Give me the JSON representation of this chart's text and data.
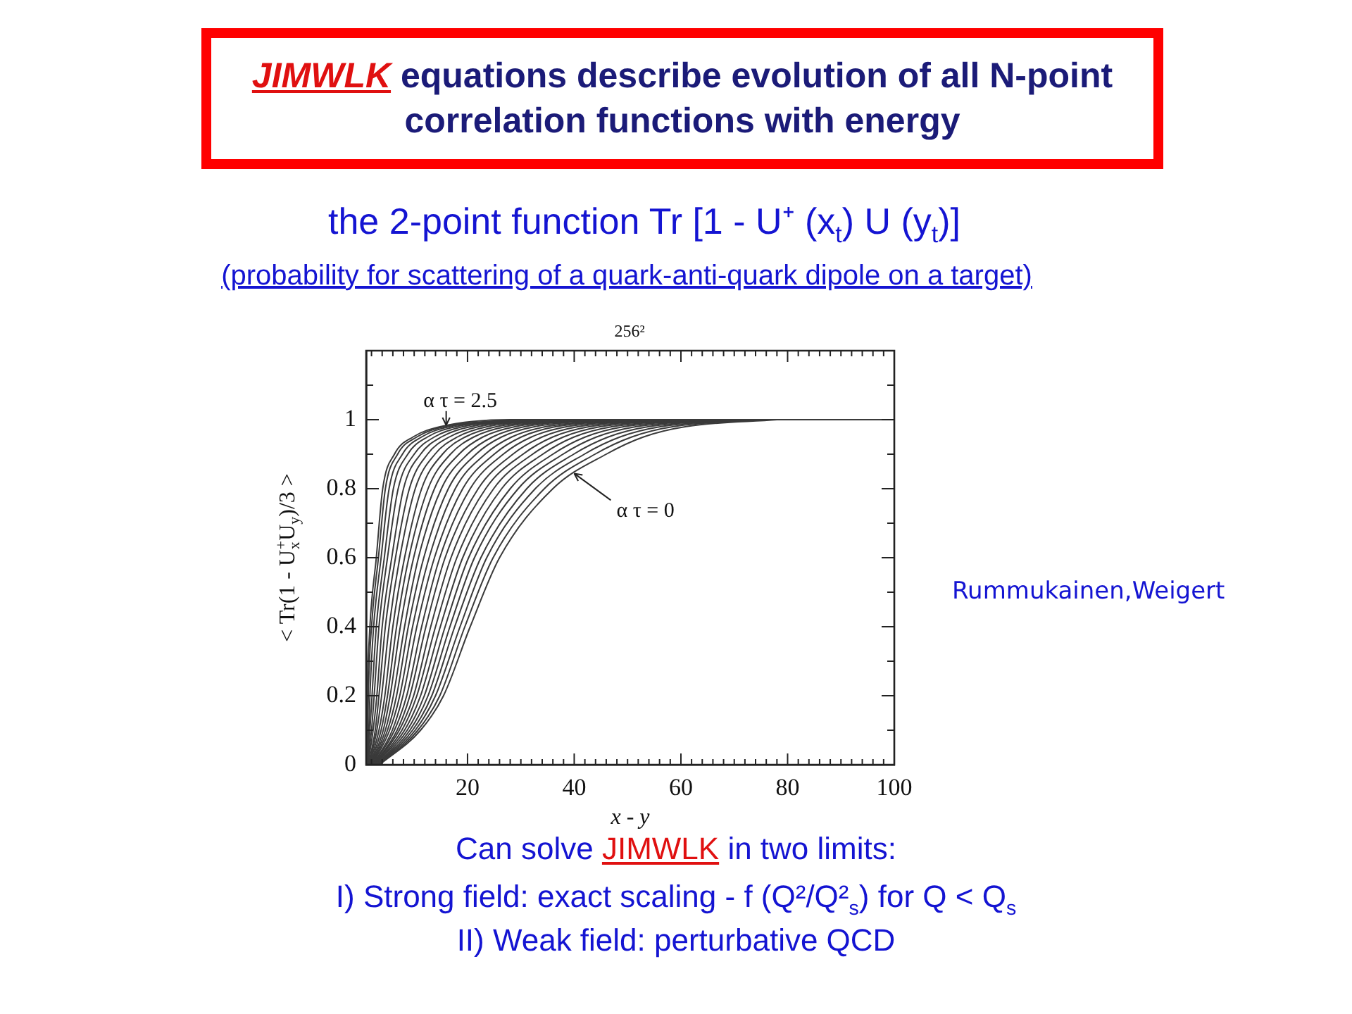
{
  "chart_data": {
    "type": "line",
    "title": "JIMWLK equations describe evolution of all N-point correlation functions with energy",
    "subtitle": "the 2-point function Tr [1 - U⁺ (x$_{t}$) U (y$_{t}$)]",
    "xlabel": "x - y",
    "ylabel": "< Tr(1 - U$^{+}$$_{x}$U$_{y}$)/3 >",
    "annotations": [
      "(probability for scattering of a quark-anti-quark dipole on a target)",
      "256²",
      {
        "text": "α τ = 2.5",
        "x": 16,
        "y": 0.98
      },
      {
        "text": "α τ = 0",
        "x": 40,
        "y": 0.84
      },
      "Rummukainen,Weigert",
      "Can solve JIMWLK in two limits:",
      "I) Strong field: exact scaling - f (Q²/Q²$_{s}$) for Q < Q$_{s}$",
      "II) Weak field: perturbative QCD"
    ],
    "xlim": [
      1,
      100
    ],
    "ylim": [
      0,
      1.2
    ],
    "xticks": [
      {
        "value": 2,
        "label": null
      },
      {
        "value": 4,
        "label": null
      },
      {
        "value": 6,
        "label": null
      },
      {
        "value": 8,
        "label": null
      },
      {
        "value": 10,
        "label": null
      },
      {
        "value": 12,
        "label": null
      },
      {
        "value": 14,
        "label": null
      },
      {
        "value": 16,
        "label": null
      },
      {
        "value": 18,
        "label": null
      },
      20,
      {
        "value": 22,
        "label": null
      },
      {
        "value": 24,
        "label": null
      },
      {
        "value": 26,
        "label": null
      },
      {
        "value": 28,
        "label": null
      },
      {
        "value": 30,
        "label": null
      },
      {
        "value": 32,
        "label": null
      },
      {
        "value": 34,
        "label": null
      },
      {
        "value": 36,
        "label": null
      },
      {
        "value": 38,
        "label": null
      },
      40,
      {
        "value": 42,
        "label": null
      },
      {
        "value": 44,
        "label": null
      },
      {
        "value": 46,
        "label": null
      },
      {
        "value": 48,
        "label": null
      },
      {
        "value": 50,
        "label": null
      },
      {
        "value": 52,
        "label": null
      },
      {
        "value": 54,
        "label": null
      },
      {
        "value": 56,
        "label": null
      },
      {
        "value": 58,
        "label": null
      },
      60,
      {
        "value": 62,
        "label": null
      },
      {
        "value": 64,
        "label": null
      },
      {
        "value": 66,
        "label": null
      },
      {
        "value": 68,
        "label": null
      },
      {
        "value": 70,
        "label": null
      },
      {
        "value": 72,
        "label": null
      },
      {
        "value": 74,
        "label": null
      },
      {
        "value": 76,
        "label": null
      },
      {
        "value": 78,
        "label": null
      },
      80,
      {
        "value": 82,
        "label": null
      },
      {
        "value": 84,
        "label": null
      },
      {
        "value": 86,
        "label": null
      },
      {
        "value": 88,
        "label": null
      },
      {
        "value": 90,
        "label": null
      },
      {
        "value": 92,
        "label": null
      },
      {
        "value": 94,
        "label": null
      },
      {
        "value": 96,
        "label": null
      },
      {
        "value": 98,
        "label": null
      },
      100
    ],
    "yticks": [
      0,
      {
        "value": 0.1,
        "label": null
      },
      0.2,
      {
        "value": 0.3,
        "label": null
      },
      0.4,
      {
        "value": 0.5,
        "label": null
      },
      0.6,
      {
        "value": 0.7,
        "label": null
      },
      0.8,
      {
        "value": 0.9,
        "label": null
      },
      1,
      {
        "value": 1.1,
        "label": null
      }
    ],
    "marker": "none",
    "series": [
      {
        "color": "#3a3a3a",
        "x": [
          1.0,
          1.1,
          1.2,
          1.7,
          2.9,
          4.1,
          6.3,
          9.8,
          15,
          28,
          100
        ],
        "values": [
          0,
          0.1,
          0.2,
          0.4,
          0.6,
          0.8,
          0.9,
          0.95,
          0.98,
          1,
          1
        ]
      },
      {
        "color": "#3a3a3a",
        "x": [
          1.0,
          1.3,
          1.4,
          2.0,
          3.3,
          4.6,
          6.9,
          10.5,
          15.7,
          28.8
        ],
        "values": [
          0,
          0.1,
          0.2,
          0.4,
          0.6,
          0.8,
          0.9,
          0.95,
          0.98,
          1
        ]
      },
      {
        "color": "#3a3a3a",
        "x": [
          1.1,
          1.5,
          1.7,
          2.4,
          3.8,
          5.3,
          7.8,
          11.4,
          16.7,
          29.9
        ],
        "values": [
          0,
          0.1,
          0.2,
          0.4,
          0.6,
          0.8,
          0.9,
          0.95,
          0.98,
          1
        ]
      },
      {
        "color": "#3a3a3a",
        "x": [
          1.2,
          1.7,
          2.1,
          2.9,
          4.4,
          6.1,
          8.8,
          12.5,
          17.9,
          31.2
        ],
        "values": [
          0,
          0.1,
          0.2,
          0.4,
          0.6,
          0.8,
          0.9,
          0.95,
          0.98,
          1
        ]
      },
      {
        "color": "#3a3a3a",
        "x": [
          1.2,
          2.0,
          2.5,
          3.4,
          5.0,
          7.0,
          10.0,
          13.8,
          19.2,
          32.6
        ],
        "values": [
          0,
          0.1,
          0.2,
          0.4,
          0.6,
          0.8,
          0.9,
          0.95,
          0.98,
          1
        ]
      },
      {
        "color": "#3a3a3a",
        "x": [
          1.3,
          2.3,
          3.0,
          4.0,
          5.8,
          8.0,
          11.2,
          15.1,
          20.7,
          34.2
        ],
        "values": [
          0,
          0.1,
          0.2,
          0.4,
          0.6,
          0.8,
          0.9,
          0.95,
          0.98,
          1
        ]
      },
      {
        "color": "#3a3a3a",
        "x": [
          1.4,
          2.7,
          3.4,
          4.6,
          6.5,
          9.1,
          12.5,
          16.6,
          22.2,
          35.8
        ],
        "values": [
          0,
          0.1,
          0.2,
          0.4,
          0.6,
          0.8,
          0.9,
          0.95,
          0.98,
          1
        ]
      },
      {
        "color": "#3a3a3a",
        "x": [
          1.5,
          3.0,
          3.9,
          5.3,
          7.3,
          10.2,
          13.9,
          18.1,
          23.8,
          37.6
        ],
        "values": [
          0,
          0.1,
          0.2,
          0.4,
          0.6,
          0.8,
          0.9,
          0.95,
          0.98,
          1
        ]
      },
      {
        "color": "#3a3a3a",
        "x": [
          1.6,
          3.4,
          4.5,
          6.0,
          8.2,
          11.4,
          15.3,
          19.6,
          25.5,
          39.4
        ],
        "values": [
          0,
          0.1,
          0.2,
          0.4,
          0.6,
          0.8,
          0.9,
          0.95,
          0.98,
          1
        ]
      },
      {
        "color": "#3a3a3a",
        "x": [
          1.7,
          3.8,
          5.0,
          6.7,
          9.0,
          12.6,
          16.8,
          21.2,
          27.2,
          41.3
        ],
        "values": [
          0,
          0.1,
          0.2,
          0.4,
          0.6,
          0.8,
          0.9,
          0.95,
          0.98,
          1
        ]
      },
      {
        "color": "#3a3a3a",
        "x": [
          1.8,
          4.2,
          5.5,
          7.4,
          9.9,
          13.8,
          18.4,
          22.9,
          29.0,
          43.2
        ],
        "values": [
          0,
          0.1,
          0.2,
          0.4,
          0.6,
          0.8,
          0.9,
          0.95,
          0.98,
          1
        ]
      },
      {
        "color": "#3a3a3a",
        "x": [
          1.9,
          4.6,
          6.1,
          8.2,
          10.8,
          15.1,
          20.0,
          24.7,
          30.8,
          45.2
        ],
        "values": [
          0,
          0.1,
          0.2,
          0.4,
          0.6,
          0.8,
          0.9,
          0.95,
          0.98,
          1
        ]
      },
      {
        "color": "#3a3a3a",
        "x": [
          2.0,
          5.0,
          6.7,
          8.9,
          11.8,
          16.4,
          21.6,
          26.4,
          32.7,
          47.3
        ],
        "values": [
          0,
          0.1,
          0.2,
          0.4,
          0.6,
          0.8,
          0.9,
          0.95,
          0.98,
          1
        ]
      },
      {
        "color": "#3a3a3a",
        "x": [
          2.1,
          5.4,
          7.3,
          9.7,
          12.8,
          17.7,
          23.3,
          28.3,
          34.7,
          49.4
        ],
        "values": [
          0,
          0.1,
          0.2,
          0.4,
          0.6,
          0.8,
          0.9,
          0.95,
          0.98,
          1
        ]
      },
      {
        "color": "#3a3a3a",
        "x": [
          2.2,
          5.9,
          7.9,
          10.5,
          13.8,
          19.1,
          25.0,
          30.1,
          36.6,
          51.5
        ],
        "values": [
          0,
          0.1,
          0.2,
          0.4,
          0.6,
          0.8,
          0.9,
          0.95,
          0.98,
          1
        ]
      },
      {
        "color": "#3a3a3a",
        "x": [
          2.3,
          6.3,
          8.6,
          11.4,
          14.8,
          20.5,
          26.7,
          32.0,
          38.7,
          53.7
        ],
        "values": [
          0,
          0.1,
          0.2,
          0.4,
          0.6,
          0.8,
          0.9,
          0.95,
          0.98,
          1
        ]
      },
      {
        "color": "#3a3a3a",
        "x": [
          2.4,
          6.8,
          9.2,
          12.2,
          15.8,
          22.0,
          28.5,
          34.0,
          40.8,
          56.0
        ],
        "values": [
          0,
          0.1,
          0.2,
          0.4,
          0.6,
          0.8,
          0.9,
          0.95,
          0.98,
          1
        ]
      },
      {
        "color": "#3a3a3a",
        "x": [
          2.5,
          7.2,
          9.9,
          13.1,
          16.9,
          23.4,
          30.4,
          36.0,
          42.9,
          58.3
        ],
        "values": [
          0,
          0.1,
          0.2,
          0.4,
          0.6,
          0.8,
          0.9,
          0.95,
          0.98,
          1
        ]
      },
      {
        "color": "#3a3a3a",
        "x": [
          2.6,
          7.7,
          10.5,
          14.0,
          18.0,
          24.9,
          32.2,
          38.0,
          45.0,
          60.6
        ],
        "values": [
          0,
          0.1,
          0.2,
          0.4,
          0.6,
          0.8,
          0.9,
          0.95,
          0.98,
          1
        ]
      },
      {
        "color": "#3a3a3a",
        "x": [
          2.7,
          8.2,
          11.2,
          14.9,
          19.1,
          26.4,
          34.1,
          40.0,
          47.2,
          63.0
        ],
        "values": [
          0,
          0.1,
          0.2,
          0.4,
          0.6,
          0.8,
          0.9,
          0.95,
          0.98,
          1
        ]
      },
      {
        "color": "#3a3a3a",
        "x": [
          2.9,
          8.7,
          11.9,
          15.8,
          20.2,
          28.0,
          36.0,
          42.1,
          49.4,
          65.4
        ],
        "values": [
          0,
          0.1,
          0.2,
          0.4,
          0.6,
          0.8,
          0.9,
          0.95,
          0.98,
          1
        ]
      },
      {
        "color": "#3a3a3a",
        "x": [
          3.0,
          9.2,
          12.6,
          16.7,
          21.3,
          29.5,
          37.9,
          44.2,
          51.7,
          67.9
        ],
        "values": [
          0,
          0.1,
          0.2,
          0.4,
          0.6,
          0.8,
          0.9,
          0.95,
          0.98,
          1
        ]
      },
      {
        "color": "#3a3a3a",
        "x": [
          3.1,
          9.7,
          13.3,
          17.6,
          22.5,
          31.1,
          39.9,
          46.4,
          54.0,
          70.4
        ],
        "values": [
          0,
          0.1,
          0.2,
          0.4,
          0.6,
          0.8,
          0.9,
          0.95,
          0.98,
          1
        ]
      },
      {
        "color": "#3a3a3a",
        "x": [
          3.2,
          10.2,
          14.0,
          18.6,
          23.6,
          32.7,
          41.9,
          48.6,
          56.3,
          72.9
        ],
        "values": [
          0,
          0.1,
          0.2,
          0.4,
          0.6,
          0.8,
          0.9,
          0.95,
          0.98,
          1
        ]
      },
      {
        "color": "#3a3a3a",
        "x": [
          3.4,
          10.7,
          14.8,
          19.5,
          24.8,
          34.4,
          43.9,
          50.8,
          58.6,
          75.4
        ],
        "values": [
          0,
          0.1,
          0.2,
          0.4,
          0.6,
          0.8,
          0.9,
          0.95,
          0.98,
          1
        ]
      },
      {
        "color": "#3a3a3a",
        "x": [
          3.5,
          11.2,
          15.5,
          20.5,
          26,
          36,
          46,
          53,
          61,
          78
        ],
        "values": [
          0,
          0.1,
          0.2,
          0.4,
          0.6,
          0.8,
          0.9,
          0.95,
          0.98,
          1
        ]
      }
    ]
  }
}
